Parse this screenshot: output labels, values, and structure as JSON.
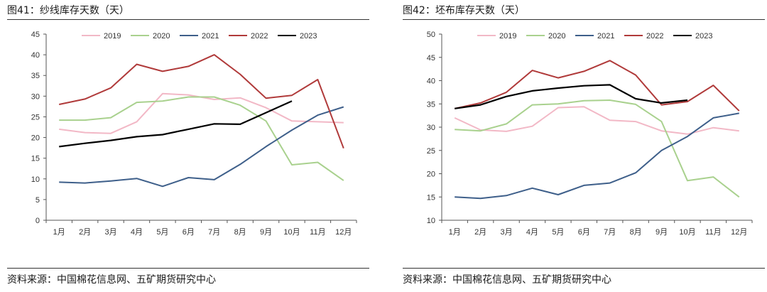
{
  "charts": [
    {
      "title": "图41：纱线库存天数（天）",
      "source": "资料来源：中国棉花信息网、五矿期货研究中心"
    },
    {
      "title": "图42：坯布库存天数（天）",
      "source": "资料来源：中国棉花信息网、五矿期货研究中心"
    }
  ],
  "chart_data": [
    {
      "type": "line",
      "title": "图41：纱线库存天数（天）",
      "categories": [
        "1月",
        "2月",
        "3月",
        "4月",
        "5月",
        "6月",
        "7月",
        "8月",
        "9月",
        "10月",
        "11月",
        "12月"
      ],
      "ylim": [
        0,
        45
      ],
      "yticks": [
        0,
        5,
        10,
        15,
        20,
        25,
        30,
        35,
        40,
        45
      ],
      "grid": false,
      "legend": "top",
      "series": [
        {
          "name": "2019",
          "color": "#f2b8c6",
          "values": [
            22.0,
            21.2,
            21.0,
            23.8,
            30.6,
            30.3,
            29.2,
            29.6,
            27.2,
            24.0,
            23.8,
            23.6
          ]
        },
        {
          "name": "2020",
          "color": "#a9d18e",
          "values": [
            24.2,
            24.2,
            24.8,
            28.5,
            28.8,
            29.8,
            29.8,
            27.8,
            24.0,
            13.4,
            14.0,
            9.6
          ]
        },
        {
          "name": "2021",
          "color": "#3e5f8a",
          "values": [
            9.2,
            9.0,
            9.5,
            10.1,
            8.2,
            10.3,
            9.8,
            13.5,
            17.8,
            21.8,
            25.4,
            27.4
          ]
        },
        {
          "name": "2022",
          "color": "#b03a3a",
          "values": [
            28.0,
            29.3,
            32.0,
            37.7,
            36.0,
            37.2,
            40.0,
            35.3,
            29.5,
            30.2,
            34.0,
            17.4
          ]
        },
        {
          "name": "2023",
          "color": "#000000",
          "values": [
            17.8,
            18.6,
            19.3,
            20.2,
            20.7,
            22.0,
            23.3,
            23.2,
            26.0,
            28.8,
            null,
            null
          ]
        }
      ]
    },
    {
      "type": "line",
      "title": "图42：坯布库存天数（天）",
      "categories": [
        "1月",
        "2月",
        "3月",
        "4月",
        "5月",
        "6月",
        "7月",
        "8月",
        "9月",
        "10月",
        "11月",
        "12月"
      ],
      "ylim": [
        10,
        50
      ],
      "yticks": [
        10,
        15,
        20,
        25,
        30,
        35,
        40,
        45,
        50
      ],
      "grid": false,
      "legend": "top",
      "series": [
        {
          "name": "2019",
          "color": "#f2b8c6",
          "values": [
            32.0,
            29.4,
            29.1,
            30.2,
            34.2,
            34.4,
            31.5,
            31.2,
            29.2,
            28.5,
            29.9,
            29.2
          ]
        },
        {
          "name": "2020",
          "color": "#a9d18e",
          "values": [
            29.5,
            29.2,
            30.7,
            34.8,
            35.0,
            35.7,
            35.8,
            34.9,
            31.2,
            18.5,
            19.3,
            15.0
          ]
        },
        {
          "name": "2021",
          "color": "#3e5f8a",
          "values": [
            15.0,
            14.7,
            15.3,
            16.9,
            15.5,
            17.5,
            18.0,
            20.2,
            25.0,
            28.0,
            32.0,
            33.0
          ]
        },
        {
          "name": "2022",
          "color": "#b03a3a",
          "values": [
            34.0,
            35.2,
            37.5,
            42.2,
            40.6,
            42.0,
            44.3,
            41.2,
            34.8,
            35.5,
            39.0,
            33.5
          ]
        },
        {
          "name": "2023",
          "color": "#000000",
          "values": [
            34.0,
            34.8,
            36.6,
            37.8,
            38.4,
            38.9,
            39.1,
            36.1,
            35.2,
            35.8,
            null,
            null
          ]
        }
      ]
    }
  ]
}
